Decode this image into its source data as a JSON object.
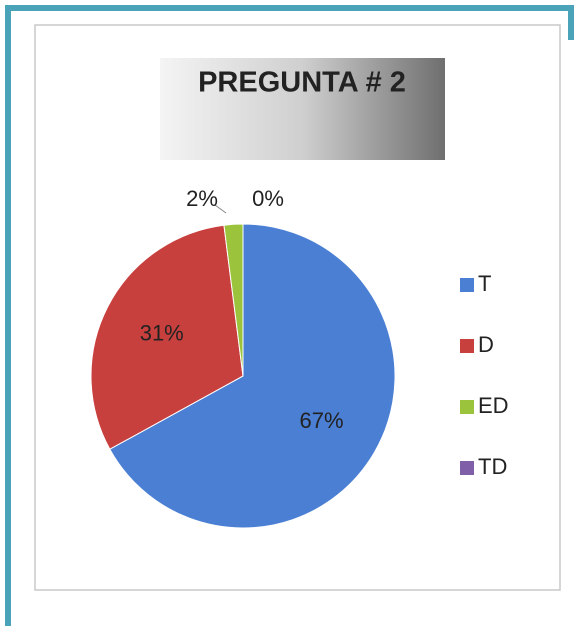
{
  "chart_data": {
    "type": "pie",
    "title": "PREGUNTA # 2",
    "categories": [
      "T",
      "D",
      "ED",
      "TD"
    ],
    "values": [
      67,
      31,
      2,
      0
    ],
    "value_labels": [
      "67%",
      "31%",
      "2%",
      "0%"
    ],
    "colors": [
      "#4a7fd4",
      "#c8403e",
      "#9bc43c",
      "#7f5fa8"
    ],
    "legend": "right"
  }
}
